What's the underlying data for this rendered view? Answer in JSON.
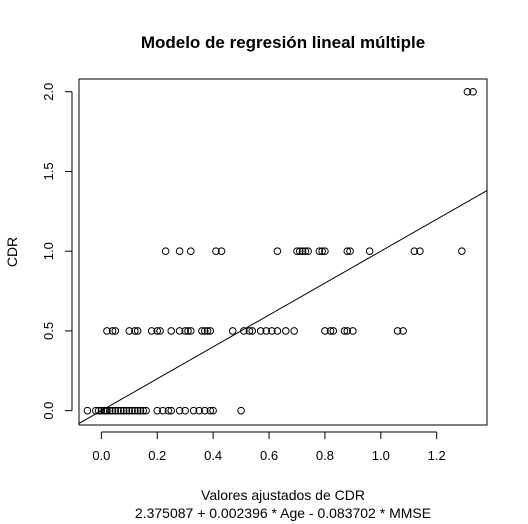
{
  "chart_data": {
    "type": "scatter",
    "title": "Modelo de regresión lineal múltiple",
    "xlabel": "Valores ajustados de CDR",
    "ylabel": "CDR",
    "subtitle": "2.375087 + 0.002396 * Age - 0.083702 * MMSE",
    "xlim": [
      -0.08,
      1.38
    ],
    "ylim": [
      -0.09,
      2.08
    ],
    "xticks": [
      "0.0",
      "0.2",
      "0.4",
      "0.6",
      "0.8",
      "1.0",
      "1.2"
    ],
    "xtick_values": [
      0.0,
      0.2,
      0.4,
      0.6,
      0.8,
      1.0,
      1.2
    ],
    "yticks": [
      "0.0",
      "0.5",
      "1.0",
      "1.5",
      "2.0"
    ],
    "ytick_values": [
      0.0,
      0.5,
      1.0,
      1.5,
      2.0
    ],
    "grid": false,
    "legend": "none",
    "regression_line": {
      "intercept": 0.0,
      "slope": 1.0
    },
    "series": [
      {
        "points": [
          [
            -0.05,
            0.0
          ],
          [
            -0.02,
            0.0
          ],
          [
            -0.01,
            0.0
          ],
          [
            0.0,
            0.0
          ],
          [
            0.01,
            0.0
          ],
          [
            0.015,
            0.0
          ],
          [
            0.02,
            0.0
          ],
          [
            0.03,
            0.0
          ],
          [
            0.04,
            0.0
          ],
          [
            0.05,
            0.0
          ],
          [
            0.06,
            0.0
          ],
          [
            0.07,
            0.0
          ],
          [
            0.08,
            0.0
          ],
          [
            0.09,
            0.0
          ],
          [
            0.1,
            0.0
          ],
          [
            0.11,
            0.0
          ],
          [
            0.12,
            0.0
          ],
          [
            0.13,
            0.0
          ],
          [
            0.14,
            0.0
          ],
          [
            0.15,
            0.0
          ],
          [
            0.16,
            0.0
          ],
          [
            0.2,
            0.0
          ],
          [
            0.22,
            0.0
          ],
          [
            0.24,
            0.0
          ],
          [
            0.25,
            0.0
          ],
          [
            0.28,
            0.0
          ],
          [
            0.3,
            0.0
          ],
          [
            0.33,
            0.0
          ],
          [
            0.35,
            0.0
          ],
          [
            0.37,
            0.0
          ],
          [
            0.39,
            0.0
          ],
          [
            0.4,
            0.0
          ],
          [
            0.5,
            0.0
          ],
          [
            0.02,
            0.5
          ],
          [
            0.04,
            0.5
          ],
          [
            0.05,
            0.5
          ],
          [
            0.1,
            0.5
          ],
          [
            0.12,
            0.5
          ],
          [
            0.13,
            0.5
          ],
          [
            0.18,
            0.5
          ],
          [
            0.2,
            0.5
          ],
          [
            0.21,
            0.5
          ],
          [
            0.25,
            0.5
          ],
          [
            0.28,
            0.5
          ],
          [
            0.3,
            0.5
          ],
          [
            0.31,
            0.5
          ],
          [
            0.32,
            0.5
          ],
          [
            0.36,
            0.5
          ],
          [
            0.37,
            0.5
          ],
          [
            0.38,
            0.5
          ],
          [
            0.39,
            0.5
          ],
          [
            0.47,
            0.5
          ],
          [
            0.51,
            0.5
          ],
          [
            0.53,
            0.5
          ],
          [
            0.54,
            0.5
          ],
          [
            0.57,
            0.5
          ],
          [
            0.59,
            0.5
          ],
          [
            0.61,
            0.5
          ],
          [
            0.63,
            0.5
          ],
          [
            0.66,
            0.5
          ],
          [
            0.69,
            0.5
          ],
          [
            0.8,
            0.5
          ],
          [
            0.82,
            0.5
          ],
          [
            0.83,
            0.5
          ],
          [
            0.87,
            0.5
          ],
          [
            0.88,
            0.5
          ],
          [
            0.9,
            0.5
          ],
          [
            1.06,
            0.5
          ],
          [
            1.08,
            0.5
          ],
          [
            0.23,
            1.0
          ],
          [
            0.28,
            1.0
          ],
          [
            0.32,
            1.0
          ],
          [
            0.41,
            1.0
          ],
          [
            0.43,
            1.0
          ],
          [
            0.63,
            1.0
          ],
          [
            0.7,
            1.0
          ],
          [
            0.71,
            1.0
          ],
          [
            0.72,
            1.0
          ],
          [
            0.73,
            1.0
          ],
          [
            0.74,
            1.0
          ],
          [
            0.78,
            1.0
          ],
          [
            0.79,
            1.0
          ],
          [
            0.8,
            1.0
          ],
          [
            0.88,
            1.0
          ],
          [
            0.89,
            1.0
          ],
          [
            0.96,
            1.0
          ],
          [
            1.12,
            1.0
          ],
          [
            1.14,
            1.0
          ],
          [
            1.29,
            1.0
          ],
          [
            1.31,
            2.0
          ],
          [
            1.33,
            2.0
          ]
        ]
      }
    ]
  }
}
